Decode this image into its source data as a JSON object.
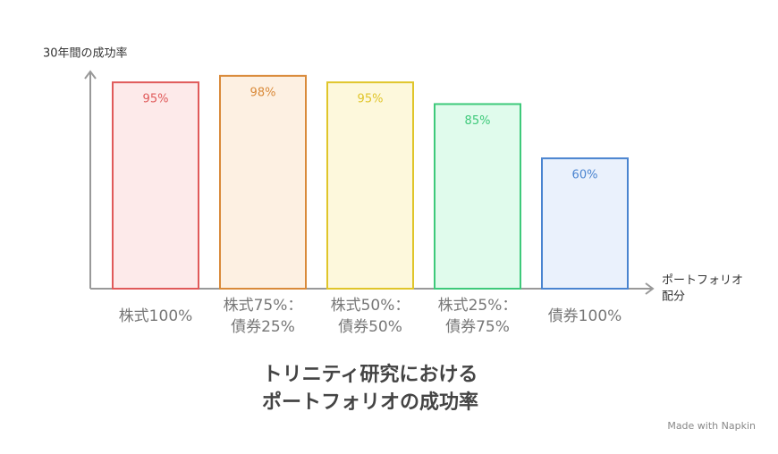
{
  "chart_data": {
    "type": "bar",
    "title": [
      "トリニティ研究における",
      "ポートフォリオの成功率"
    ],
    "y_label": "30年間の成功率",
    "x_label": [
      "ポートフォリオ",
      "配分"
    ],
    "categories": [
      [
        "株式100%"
      ],
      [
        "株式75%：",
        "債券25%"
      ],
      [
        "株式50%：",
        "債券50%"
      ],
      [
        "株式25%：",
        "債券75%"
      ],
      [
        "債券100%"
      ]
    ],
    "values": [
      95,
      98,
      95,
      85,
      60
    ],
    "value_labels": [
      "95%",
      "98%",
      "95%",
      "85%",
      "60%"
    ],
    "colors": [
      "#e05a5a",
      "#d98a3a",
      "#e0c52a",
      "#3ec97a",
      "#4a84d0"
    ],
    "fills": [
      "#fdeaea",
      "#fdf0e2",
      "#fdf8dc",
      "#e0fbec",
      "#eaf1fc"
    ],
    "ylim": [
      0,
      100
    ],
    "watermark": "Made with Napkin"
  }
}
